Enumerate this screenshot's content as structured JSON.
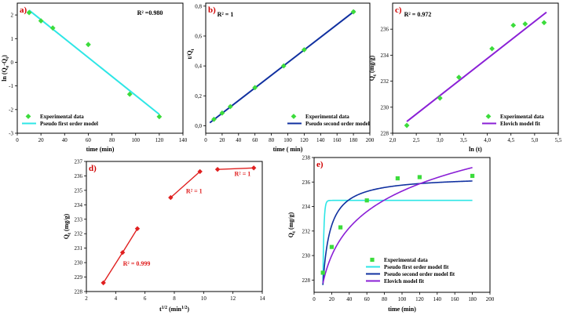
{
  "figure": {
    "description_text": ""
  },
  "chart_data": [
    {
      "id": "a",
      "type": "scatter",
      "panel_label": "a)",
      "panel_label_color": "#d00000",
      "xlabel": "time (min)",
      "ylabel": "ln (Qe-Qt)",
      "ylabel_main": "ln (Q",
      "ylabel_sub1": "e",
      "ylabel_mid": "-Q",
      "ylabel_sub2": "t",
      "ylabel_end": ")",
      "xlim": [
        0,
        140
      ],
      "ylim": [
        -3,
        2.5
      ],
      "xticks": [
        0,
        20,
        40,
        60,
        80,
        100,
        120,
        140
      ],
      "yticks": [
        -3,
        -2,
        -1,
        0,
        1,
        2
      ],
      "annotation": "R² =0.980",
      "series": [
        {
          "name": "Experimental data",
          "kind": "scatter",
          "marker": "diamond",
          "color": "#3cdc3c",
          "x": [
            10,
            20,
            30,
            60,
            95,
            120
          ],
          "y": [
            2.1,
            1.75,
            1.45,
            0.75,
            -1.35,
            -2.3
          ]
        },
        {
          "name": "Pseudo first order model",
          "kind": "line",
          "color": "#2ee6e6",
          "x": [
            10,
            120
          ],
          "y": [
            2.2,
            -2.2
          ]
        }
      ],
      "legend": [
        "Experimental data",
        "Pseudo first order model"
      ],
      "legend_position": "bottom-left"
    },
    {
      "id": "b",
      "type": "scatter",
      "panel_label": "b)",
      "panel_label_color": "#d00000",
      "xlabel": "time ( min)",
      "ylabel": "t/Qt",
      "ylabel_main": "t/Q",
      "ylabel_sub1": "t",
      "xlim": [
        0,
        200
      ],
      "ylim": [
        -0.05,
        0.82
      ],
      "xticks": [
        0,
        20,
        40,
        60,
        80,
        100,
        120,
        140,
        160,
        180,
        200
      ],
      "yticks": [
        0.0,
        0.2,
        0.4,
        0.6,
        0.8
      ],
      "ytick_labels": [
        "0,0",
        "0,2",
        "0,4",
        "0,6",
        "0,8"
      ],
      "annotation": "R² = 1",
      "series": [
        {
          "name": "Experimental data",
          "kind": "scatter",
          "marker": "diamond",
          "color": "#3cdc3c",
          "x": [
            10,
            20,
            30,
            60,
            95,
            120,
            180
          ],
          "y": [
            0.043,
            0.085,
            0.128,
            0.255,
            0.4,
            0.508,
            0.762
          ]
        },
        {
          "name": "Pseudo second order model",
          "kind": "line",
          "color": "#1030a0",
          "x": [
            5,
            182
          ],
          "y": [
            0.02,
            0.77
          ]
        }
      ],
      "legend": [
        "Experimental data",
        "Pseudo second order model"
      ],
      "legend_position": "bottom-right"
    },
    {
      "id": "c",
      "type": "scatter",
      "panel_label": "c)",
      "panel_label_color": "#d00000",
      "xlabel": "ln (t)",
      "ylabel": "Qt (mg/g)",
      "ylabel_main": "Q",
      "ylabel_sub1": "t",
      "ylabel_end": " (mg/g)",
      "xlim": [
        2.0,
        5.5
      ],
      "ylim": [
        228,
        238
      ],
      "xticks": [
        2.0,
        2.5,
        3.0,
        3.5,
        4.0,
        4.5,
        5.0,
        5.5
      ],
      "xtick_labels": [
        "2,0",
        "2,5",
        "3,0",
        "3,5",
        "4,0",
        "4,5",
        "5,0",
        "5,5"
      ],
      "yticks": [
        228,
        230,
        232,
        234,
        236
      ],
      "annotation": "R² = 0.972",
      "series": [
        {
          "name": "Experimental data",
          "kind": "scatter",
          "marker": "diamond",
          "color": "#3cdc3c",
          "x": [
            2.3,
            3.0,
            3.4,
            4.1,
            4.55,
            4.8,
            5.2
          ],
          "y": [
            228.6,
            230.7,
            232.3,
            234.5,
            236.3,
            236.4,
            236.5
          ]
        },
        {
          "name": "Elovich model fit",
          "kind": "line",
          "color": "#8a1fd6",
          "x": [
            2.3,
            5.25
          ],
          "y": [
            228.9,
            237.3
          ]
        }
      ],
      "legend": [
        "Experimental data",
        "Elovich model fit"
      ],
      "legend_position": "bottom-right"
    },
    {
      "id": "d",
      "type": "line",
      "panel_label": "d)",
      "panel_label_color": "#d00000",
      "xlabel": "t1/2 (min1/2)",
      "xlabel_main": "t",
      "xlabel_sup1": "1/2",
      "xlabel_mid": " (min",
      "xlabel_sup2": "1/2",
      "xlabel_end": ")",
      "ylabel": "Qt (mg/g)",
      "ylabel_main": "Q",
      "ylabel_sub1": "t",
      "ylabel_end": " (mg/g)",
      "xlim": [
        2,
        14
      ],
      "ylim": [
        228,
        237
      ],
      "xticks": [
        2,
        4,
        6,
        8,
        10,
        12,
        14
      ],
      "yticks": [
        228,
        229,
        230,
        231,
        232,
        233,
        234,
        235,
        236,
        237
      ],
      "annotations": [
        {
          "text": "R² = 0.999",
          "x": 4.5,
          "y": 229.8
        },
        {
          "text": "R² = 1",
          "x": 8.8,
          "y": 234.8
        },
        {
          "text": "R² = 1",
          "x": 12.1,
          "y": 236.0
        }
      ],
      "series": [
        {
          "name": "Segment 1",
          "kind": "line",
          "marker": "diamond",
          "color": "#e02020",
          "x": [
            3.16,
            4.47,
            5.48
          ],
          "y": [
            228.6,
            230.7,
            232.35
          ]
        },
        {
          "name": "Segment 2",
          "kind": "line",
          "marker": "diamond",
          "color": "#e02020",
          "x": [
            7.75,
            9.75
          ],
          "y": [
            234.5,
            236.3
          ]
        },
        {
          "name": "Segment 3",
          "kind": "line",
          "marker": "diamond",
          "color": "#e02020",
          "x": [
            10.95,
            13.42
          ],
          "y": [
            236.45,
            236.55
          ]
        }
      ]
    },
    {
      "id": "e",
      "type": "line",
      "panel_label": "e)",
      "panel_label_color": "#d00000",
      "xlabel": "time (min)",
      "ylabel": "Qt (mg/g)",
      "ylabel_main": "Q",
      "ylabel_sub1": "t",
      "ylabel_end": " (mg/g)",
      "xlim": [
        0,
        200
      ],
      "ylim": [
        227,
        238
      ],
      "xticks": [
        0,
        20,
        40,
        60,
        80,
        100,
        120,
        140,
        160,
        180,
        200
      ],
      "yticks": [
        228,
        230,
        232,
        234,
        236,
        238
      ],
      "series": [
        {
          "name": "Experimental data",
          "kind": "scatter",
          "marker": "square",
          "color": "#3cdc3c",
          "x": [
            10,
            20,
            30,
            60,
            95,
            120,
            180
          ],
          "y": [
            228.6,
            230.7,
            232.3,
            234.5,
            236.3,
            236.4,
            236.5
          ]
        },
        {
          "name": "Pseudo first order model fit",
          "kind": "curve",
          "model": "pfo",
          "color": "#2ee6e6",
          "params": {
            "qe": 234.5,
            "k": 0.9,
            "t0": 10,
            "q0": 227.6
          }
        },
        {
          "name": "Pseudo second order model fit",
          "kind": "curve",
          "model": "pso",
          "color": "#1030a0",
          "params": {
            "qe": 236.5,
            "k": 0.12,
            "t0": 10,
            "q0": 227.6
          }
        },
        {
          "name": "Elovich model fit",
          "kind": "curve",
          "model": "elovich",
          "color": "#8a1fd6",
          "params": {
            "a": 220.2,
            "b": 3.27
          }
        }
      ],
      "legend": [
        "Experimental data",
        "Pseudo first order model fit",
        "Pseudo second order model fit",
        "Elovich model fit"
      ],
      "legend_position": "bottom-center"
    }
  ]
}
